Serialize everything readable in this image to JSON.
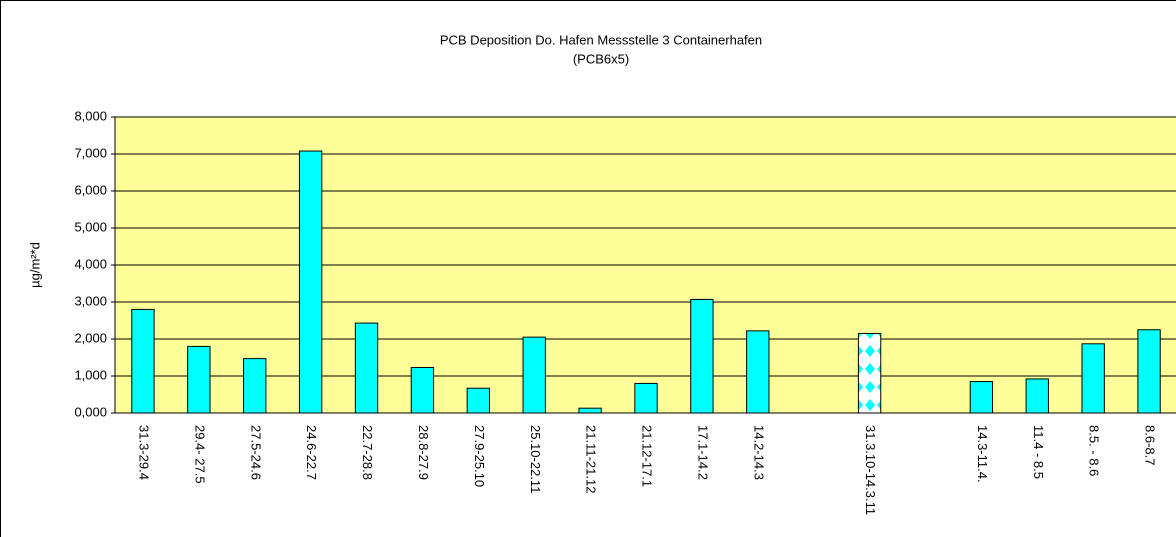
{
  "chart_data": {
    "type": "bar",
    "title": "PCB Deposition Do. Hafen Messstelle 3 Containerhafen",
    "subtitle": "(PCB6x5)",
    "y_label": "µg/m²*d",
    "categories": [
      "31.3-29.4",
      "29.4- 27.5",
      "27.5-24.6",
      "24.6-22.7",
      "22.7-28.8",
      "28.8-27.9",
      "27.9-25.10",
      "25.10-22.11",
      "21.11-21.12",
      "21.12-17.1",
      "17.1-14.2",
      "14.2-14.3",
      null,
      "31.3.10-14.3.11",
      null,
      "14.3-11.4.",
      "11.4 - 8.5",
      "8.5. - 8.6",
      "8.6-8.7"
    ],
    "values": [
      2800,
      1800,
      1470,
      7080,
      2430,
      1230,
      670,
      2050,
      130,
      800,
      3070,
      2220,
      null,
      2150,
      null,
      850,
      920,
      1870,
      2250
    ],
    "color": "#00ffff",
    "patterned_bars": [
      13
    ],
    "plot_background": "#ffff99",
    "ylim": [
      0,
      8000
    ],
    "yticks": [
      {
        "value": 0,
        "label": "0,000"
      },
      {
        "value": 1000,
        "label": "1,000"
      },
      {
        "value": 2000,
        "label": "2,000"
      },
      {
        "value": 3000,
        "label": "3,000"
      },
      {
        "value": 4000,
        "label": "4,000"
      },
      {
        "value": 5000,
        "label": "5,000"
      },
      {
        "value": 6000,
        "label": "6,000"
      },
      {
        "value": 7000,
        "label": "7,000"
      },
      {
        "value": 8000,
        "label": "8,000"
      }
    ],
    "grid": true
  }
}
